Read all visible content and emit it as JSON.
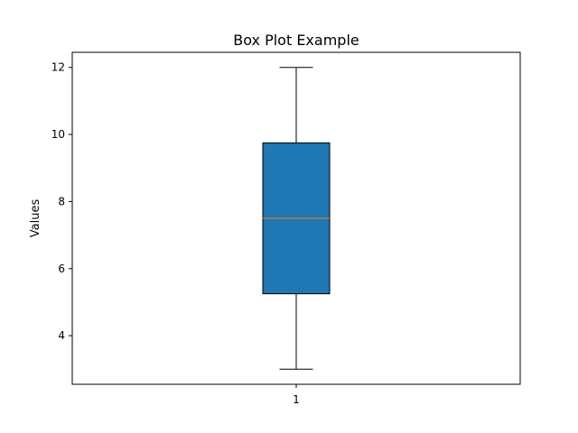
{
  "chart_data": {
    "type": "box",
    "title": "Box Plot Example",
    "xlabel": "",
    "ylabel": "Values",
    "categories": [
      "1"
    ],
    "boxes": [
      {
        "category": "1",
        "whisker_low": 3,
        "q1": 5.25,
        "median": 7.5,
        "q3": 9.75,
        "whisker_high": 12
      }
    ],
    "ylim": [
      2.55,
      12.45
    ],
    "yticks": [
      4,
      6,
      8,
      10,
      12
    ],
    "grid": false,
    "legend": "none",
    "colors": {
      "box_fill": "#1f77b4",
      "median": "#ff7f0e",
      "line": "#000000"
    }
  }
}
